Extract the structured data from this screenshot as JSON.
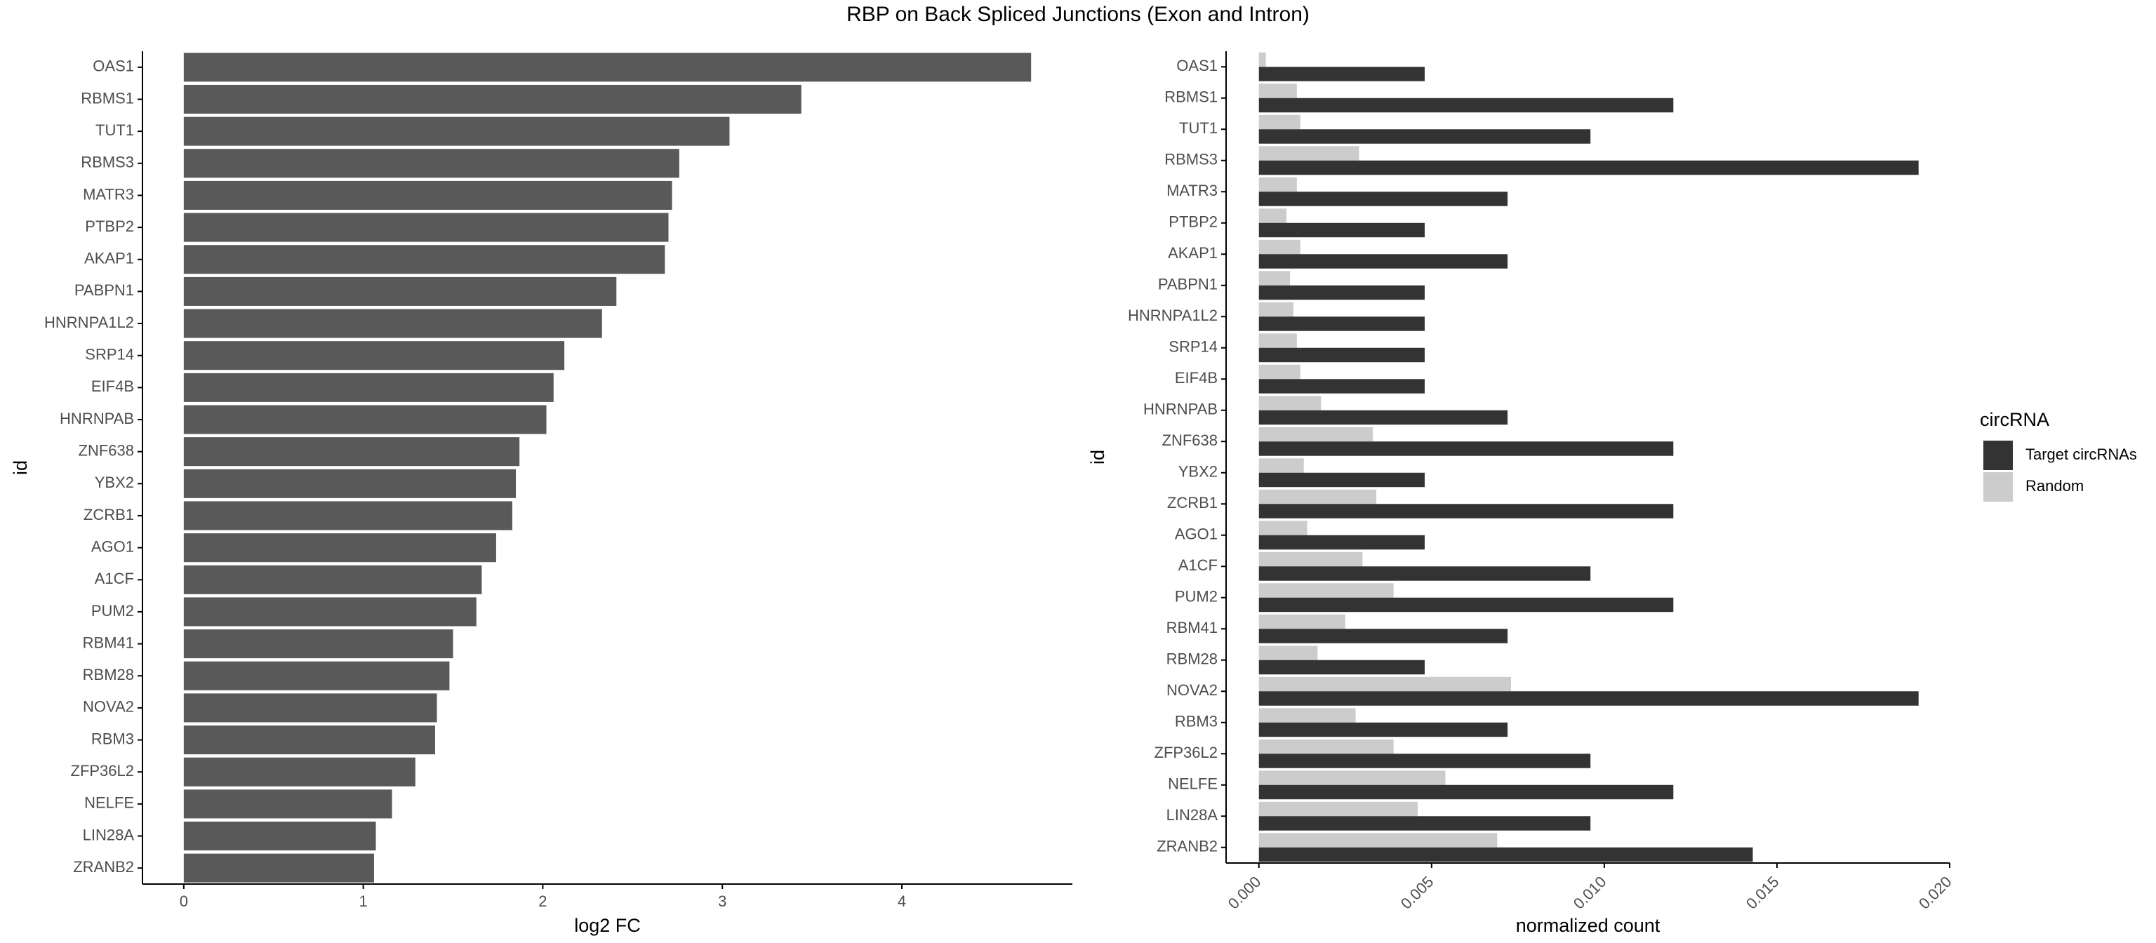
{
  "figure": {
    "title": "RBP on Back Spliced Junctions (Exon and Intron)"
  },
  "colors": {
    "left_bar": "#595959",
    "target": "#333333",
    "random": "#cccccc",
    "axis": "#000000",
    "tick_text": "#4d4d4d"
  },
  "chart_data": [
    {
      "type": "bar",
      "orientation": "horizontal",
      "xlabel": "log2 FC",
      "ylabel": "id",
      "xlim": [
        -0.23,
        4.95
      ],
      "xticks": [
        0,
        1,
        2,
        3,
        4
      ],
      "grid": false,
      "categories": [
        "OAS1",
        "RBMS1",
        "TUT1",
        "RBMS3",
        "MATR3",
        "PTBP2",
        "AKAP1",
        "PABPN1",
        "HNRNPA1L2",
        "SRP14",
        "EIF4B",
        "HNRNPAB",
        "ZNF638",
        "YBX2",
        "ZCRB1",
        "AGO1",
        "A1CF",
        "PUM2",
        "RBM41",
        "RBM28",
        "NOVA2",
        "RBM3",
        "ZFP36L2",
        "NELFE",
        "LIN28A",
        "ZRANB2"
      ],
      "values": [
        4.72,
        3.44,
        3.04,
        2.76,
        2.72,
        2.7,
        2.68,
        2.41,
        2.33,
        2.12,
        2.06,
        2.02,
        1.87,
        1.85,
        1.83,
        1.74,
        1.66,
        1.63,
        1.5,
        1.48,
        1.41,
        1.4,
        1.29,
        1.16,
        1.07,
        1.06
      ]
    },
    {
      "type": "bar",
      "orientation": "horizontal",
      "xlabel": "normalized count",
      "ylabel": "id",
      "xlim": [
        -0.00095,
        0.02
      ],
      "xticks": [
        "0.000",
        "0.005",
        "0.010",
        "0.015",
        "0.020"
      ],
      "xtick_values": [
        0,
        0.005,
        0.01,
        0.015,
        0.02
      ],
      "grid": false,
      "legend": {
        "title": "circRNA",
        "position": "right",
        "entries": [
          "Target circRNAs",
          "Random"
        ]
      },
      "categories": [
        "OAS1",
        "RBMS1",
        "TUT1",
        "RBMS3",
        "MATR3",
        "PTBP2",
        "AKAP1",
        "PABPN1",
        "HNRNPA1L2",
        "SRP14",
        "EIF4B",
        "HNRNPAB",
        "ZNF638",
        "YBX2",
        "ZCRB1",
        "AGO1",
        "A1CF",
        "PUM2",
        "RBM41",
        "RBM28",
        "NOVA2",
        "RBM3",
        "ZFP36L2",
        "NELFE",
        "LIN28A",
        "ZRANB2"
      ],
      "series": [
        {
          "name": "Target circRNAs",
          "values": [
            0.0048,
            0.012,
            0.0096,
            0.0191,
            0.0072,
            0.0048,
            0.0072,
            0.0048,
            0.0048,
            0.0048,
            0.0048,
            0.0072,
            0.012,
            0.0048,
            0.012,
            0.0048,
            0.0096,
            0.012,
            0.0072,
            0.0048,
            0.0191,
            0.0072,
            0.0096,
            0.012,
            0.0096,
            0.0143
          ]
        },
        {
          "name": "Random",
          "values": [
            0.0002,
            0.0011,
            0.0012,
            0.0029,
            0.0011,
            0.0008,
            0.0012,
            0.0009,
            0.001,
            0.0011,
            0.0012,
            0.0018,
            0.0033,
            0.0013,
            0.0034,
            0.0014,
            0.003,
            0.0039,
            0.0025,
            0.0017,
            0.0073,
            0.0028,
            0.0039,
            0.0054,
            0.0046,
            0.0069
          ]
        }
      ]
    }
  ]
}
